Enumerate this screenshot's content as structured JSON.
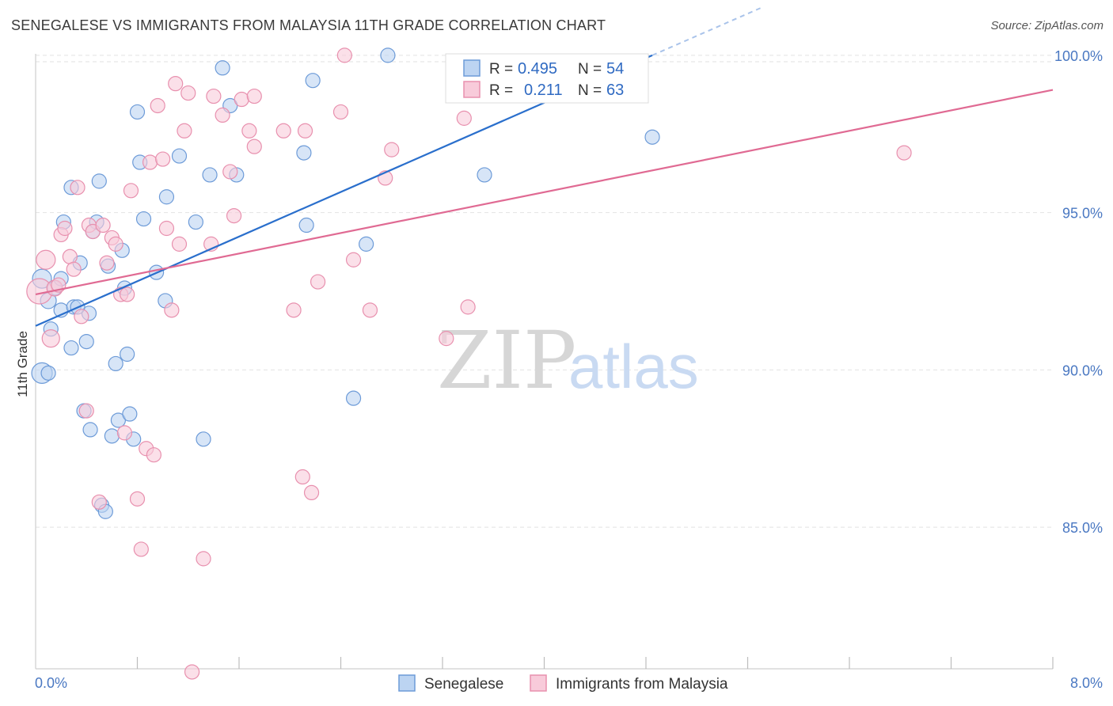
{
  "header": {
    "title": "SENEGALESE VS IMMIGRANTS FROM MALAYSIA 11TH GRADE CORRELATION CHART",
    "source": "Source: ZipAtlas.com"
  },
  "watermark": {
    "zip": "ZIP",
    "atlas": "atlas"
  },
  "colors": {
    "blue_fill": "#bcd4f2",
    "blue_stroke": "#6d9bd8",
    "blue_line": "#2a6fcc",
    "pink_fill": "#f8cbda",
    "pink_stroke": "#e890ae",
    "pink_line": "#e06a93",
    "axis_text": "#4a78c2",
    "grid": "#e2e2e2"
  },
  "legend": {
    "r_label": "R =",
    "n_label": "N =",
    "series": [
      {
        "r": "0.495",
        "n": "54"
      },
      {
        "r": "0.211",
        "n": "63"
      }
    ]
  },
  "chart_data": {
    "type": "scatter",
    "title": "SENEGALESE VS IMMIGRANTS FROM MALAYSIA 11TH GRADE CORRELATION CHART",
    "xlabel": "",
    "ylabel": "11th Grade",
    "xlim": [
      0,
      8
    ],
    "ylim": [
      80.5,
      100.5
    ],
    "x_tick_labels": [
      "0.0%",
      "8.0%"
    ],
    "y_ticks": [
      85,
      90,
      95,
      100
    ],
    "y_tick_labels": [
      "85.0%",
      "90.0%",
      "95.0%",
      "100.0%"
    ],
    "x_minor_ticks": [
      0.8,
      1.6,
      2.4,
      3.2,
      4.0,
      4.8,
      5.6,
      6.4,
      7.2,
      8.0
    ],
    "grid": true,
    "series": [
      {
        "name": "Senegalese",
        "r": 0.495,
        "n": 54,
        "trend": {
          "x0": 0.0,
          "y0": 91.4,
          "x1": 4.85,
          "y1": 100.0,
          "dashed_to": {
            "x": 5.7,
            "y": 101.5
          }
        },
        "points": [
          {
            "x": 0.05,
            "y": 92.9,
            "s": 12
          },
          {
            "x": 0.1,
            "y": 92.2,
            "s": 10
          },
          {
            "x": 0.12,
            "y": 91.3,
            "s": 9
          },
          {
            "x": 0.05,
            "y": 89.9,
            "s": 13
          },
          {
            "x": 0.2,
            "y": 91.9,
            "s": 9
          },
          {
            "x": 0.15,
            "y": 92.6,
            "s": 9
          },
          {
            "x": 0.2,
            "y": 92.9,
            "s": 9
          },
          {
            "x": 0.22,
            "y": 94.7,
            "s": 9
          },
          {
            "x": 0.28,
            "y": 90.7,
            "s": 9
          },
          {
            "x": 0.3,
            "y": 92.0,
            "s": 9
          },
          {
            "x": 0.35,
            "y": 93.4,
            "s": 9
          },
          {
            "x": 0.28,
            "y": 95.8,
            "s": 9
          },
          {
            "x": 0.38,
            "y": 88.7,
            "s": 9
          },
          {
            "x": 0.4,
            "y": 90.9,
            "s": 9
          },
          {
            "x": 0.42,
            "y": 91.8,
            "s": 9
          },
          {
            "x": 0.43,
            "y": 88.1,
            "s": 9
          },
          {
            "x": 0.45,
            "y": 94.4,
            "s": 9
          },
          {
            "x": 0.48,
            "y": 94.7,
            "s": 9
          },
          {
            "x": 0.5,
            "y": 96.0,
            "s": 9
          },
          {
            "x": 0.52,
            "y": 85.7,
            "s": 9
          },
          {
            "x": 0.55,
            "y": 85.5,
            "s": 9
          },
          {
            "x": 0.57,
            "y": 93.3,
            "s": 9
          },
          {
            "x": 0.6,
            "y": 87.9,
            "s": 9
          },
          {
            "x": 0.63,
            "y": 90.2,
            "s": 9
          },
          {
            "x": 0.65,
            "y": 88.4,
            "s": 9
          },
          {
            "x": 0.68,
            "y": 93.8,
            "s": 9
          },
          {
            "x": 0.7,
            "y": 92.6,
            "s": 9
          },
          {
            "x": 0.72,
            "y": 90.5,
            "s": 9
          },
          {
            "x": 0.74,
            "y": 88.6,
            "s": 9
          },
          {
            "x": 0.77,
            "y": 87.8,
            "s": 9
          },
          {
            "x": 0.8,
            "y": 98.2,
            "s": 9
          },
          {
            "x": 0.82,
            "y": 96.6,
            "s": 9
          },
          {
            "x": 0.85,
            "y": 94.8,
            "s": 9
          },
          {
            "x": 0.95,
            "y": 93.1,
            "s": 9
          },
          {
            "x": 1.02,
            "y": 92.2,
            "s": 9
          },
          {
            "x": 1.03,
            "y": 95.5,
            "s": 9
          },
          {
            "x": 1.13,
            "y": 96.8,
            "s": 9
          },
          {
            "x": 1.26,
            "y": 94.7,
            "s": 9
          },
          {
            "x": 1.32,
            "y": 87.8,
            "s": 9
          },
          {
            "x": 1.37,
            "y": 96.2,
            "s": 9
          },
          {
            "x": 1.47,
            "y": 99.6,
            "s": 9
          },
          {
            "x": 1.53,
            "y": 98.4,
            "s": 9
          },
          {
            "x": 1.58,
            "y": 96.2,
            "s": 9
          },
          {
            "x": 2.11,
            "y": 96.9,
            "s": 9
          },
          {
            "x": 2.13,
            "y": 94.6,
            "s": 9
          },
          {
            "x": 2.18,
            "y": 99.2,
            "s": 9
          },
          {
            "x": 2.5,
            "y": 89.1,
            "s": 9
          },
          {
            "x": 2.6,
            "y": 94.0,
            "s": 9
          },
          {
            "x": 2.77,
            "y": 100.0,
            "s": 9
          },
          {
            "x": 3.53,
            "y": 96.2,
            "s": 9
          },
          {
            "x": 3.65,
            "y": 99.0,
            "s": 9
          },
          {
            "x": 4.85,
            "y": 97.4,
            "s": 9
          },
          {
            "x": 0.1,
            "y": 89.9,
            "s": 9
          },
          {
            "x": 0.33,
            "y": 92.0,
            "s": 9
          }
        ]
      },
      {
        "name": "Immigrants from Malaysia",
        "r": 0.211,
        "n": 63,
        "trend": {
          "x0": 0.0,
          "y0": 92.4,
          "x1": 8.0,
          "y1": 98.9
        },
        "points": [
          {
            "x": 0.03,
            "y": 92.5,
            "s": 16
          },
          {
            "x": 0.08,
            "y": 93.5,
            "s": 12
          },
          {
            "x": 0.12,
            "y": 91.0,
            "s": 11
          },
          {
            "x": 0.15,
            "y": 92.6,
            "s": 10
          },
          {
            "x": 0.18,
            "y": 92.7,
            "s": 9
          },
          {
            "x": 0.2,
            "y": 94.3,
            "s": 9
          },
          {
            "x": 0.23,
            "y": 94.5,
            "s": 9
          },
          {
            "x": 0.27,
            "y": 93.6,
            "s": 9
          },
          {
            "x": 0.3,
            "y": 93.2,
            "s": 9
          },
          {
            "x": 0.33,
            "y": 95.8,
            "s": 9
          },
          {
            "x": 0.36,
            "y": 91.7,
            "s": 9
          },
          {
            "x": 0.4,
            "y": 88.7,
            "s": 9
          },
          {
            "x": 0.42,
            "y": 94.6,
            "s": 9
          },
          {
            "x": 0.45,
            "y": 94.4,
            "s": 9
          },
          {
            "x": 0.5,
            "y": 85.8,
            "s": 9
          },
          {
            "x": 0.53,
            "y": 94.6,
            "s": 9
          },
          {
            "x": 0.56,
            "y": 93.4,
            "s": 9
          },
          {
            "x": 0.6,
            "y": 94.2,
            "s": 9
          },
          {
            "x": 0.63,
            "y": 94.0,
            "s": 9
          },
          {
            "x": 0.67,
            "y": 92.4,
            "s": 9
          },
          {
            "x": 0.7,
            "y": 88.0,
            "s": 9
          },
          {
            "x": 0.72,
            "y": 92.4,
            "s": 9
          },
          {
            "x": 0.75,
            "y": 95.7,
            "s": 9
          },
          {
            "x": 0.8,
            "y": 85.9,
            "s": 9
          },
          {
            "x": 0.83,
            "y": 84.3,
            "s": 9
          },
          {
            "x": 0.87,
            "y": 87.5,
            "s": 9
          },
          {
            "x": 0.9,
            "y": 96.6,
            "s": 9
          },
          {
            "x": 0.93,
            "y": 87.3,
            "s": 9
          },
          {
            "x": 0.96,
            "y": 98.4,
            "s": 9
          },
          {
            "x": 1.0,
            "y": 96.7,
            "s": 9
          },
          {
            "x": 1.03,
            "y": 94.5,
            "s": 9
          },
          {
            "x": 1.07,
            "y": 91.9,
            "s": 9
          },
          {
            "x": 1.1,
            "y": 99.1,
            "s": 9
          },
          {
            "x": 1.13,
            "y": 94.0,
            "s": 9
          },
          {
            "x": 1.17,
            "y": 97.6,
            "s": 9
          },
          {
            "x": 1.2,
            "y": 98.8,
            "s": 9
          },
          {
            "x": 1.23,
            "y": 80.4,
            "s": 9
          },
          {
            "x": 1.32,
            "y": 84.0,
            "s": 9
          },
          {
            "x": 1.38,
            "y": 94.0,
            "s": 9
          },
          {
            "x": 1.4,
            "y": 98.7,
            "s": 9
          },
          {
            "x": 1.47,
            "y": 98.1,
            "s": 9
          },
          {
            "x": 1.53,
            "y": 96.3,
            "s": 9
          },
          {
            "x": 1.56,
            "y": 94.9,
            "s": 9
          },
          {
            "x": 1.62,
            "y": 98.6,
            "s": 9
          },
          {
            "x": 1.68,
            "y": 97.6,
            "s": 9
          },
          {
            "x": 1.72,
            "y": 97.1,
            "s": 9
          },
          {
            "x": 1.72,
            "y": 98.7,
            "s": 9
          },
          {
            "x": 1.95,
            "y": 97.6,
            "s": 9
          },
          {
            "x": 2.03,
            "y": 91.9,
            "s": 9
          },
          {
            "x": 2.1,
            "y": 86.6,
            "s": 9
          },
          {
            "x": 2.12,
            "y": 97.6,
            "s": 9
          },
          {
            "x": 2.17,
            "y": 86.1,
            "s": 9
          },
          {
            "x": 2.22,
            "y": 92.8,
            "s": 9
          },
          {
            "x": 2.4,
            "y": 98.2,
            "s": 9
          },
          {
            "x": 2.43,
            "y": 100.0,
            "s": 9
          },
          {
            "x": 2.5,
            "y": 93.5,
            "s": 9
          },
          {
            "x": 2.63,
            "y": 91.9,
            "s": 9
          },
          {
            "x": 2.75,
            "y": 96.1,
            "s": 9
          },
          {
            "x": 2.8,
            "y": 97.0,
            "s": 9
          },
          {
            "x": 3.23,
            "y": 91.0,
            "s": 9
          },
          {
            "x": 3.4,
            "y": 92.0,
            "s": 9
          },
          {
            "x": 3.37,
            "y": 98.0,
            "s": 9
          },
          {
            "x": 6.83,
            "y": 96.9,
            "s": 9
          }
        ]
      }
    ]
  }
}
